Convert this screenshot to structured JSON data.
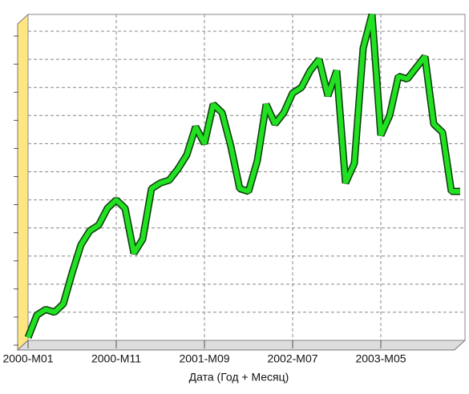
{
  "chart_data": {
    "type": "line",
    "xlabel": "Дата (Год + Месяц)",
    "categories": [
      "2000-M01",
      null,
      null,
      null,
      null,
      null,
      null,
      null,
      null,
      null,
      "2000-M11",
      null,
      null,
      null,
      null,
      null,
      null,
      null,
      null,
      null,
      "2001-M09",
      null,
      null,
      null,
      null,
      null,
      null,
      null,
      null,
      null,
      "2002-M07",
      null,
      null,
      null,
      null,
      null,
      null,
      null,
      null,
      null,
      "2003-M05",
      null,
      null,
      null,
      null,
      null,
      null,
      null,
      null,
      null
    ],
    "series": [
      {
        "color": "#22e022",
        "values": [
          0.1,
          0.9,
          1.1,
          1.0,
          1.3,
          2.4,
          3.4,
          3.9,
          4.1,
          4.7,
          5.0,
          4.7,
          3.1,
          3.6,
          5.4,
          5.6,
          5.7,
          6.1,
          6.6,
          7.6,
          7.0,
          8.4,
          8.1,
          6.9,
          5.4,
          5.3,
          6.4,
          8.4,
          7.7,
          8.1,
          8.8,
          9.0,
          9.6,
          10.0,
          8.7,
          9.6,
          5.6,
          6.3,
          10.4,
          11.6,
          7.3,
          8.0,
          9.4,
          9.3,
          9.7,
          10.1,
          7.7,
          7.4,
          5.3,
          5.3
        ]
      }
    ],
    "ylim": [
      0,
      11.6
    ],
    "yticks": [
      0,
      1,
      2,
      3,
      4,
      5,
      6,
      7,
      8,
      9,
      10,
      11
    ],
    "grid": true
  }
}
